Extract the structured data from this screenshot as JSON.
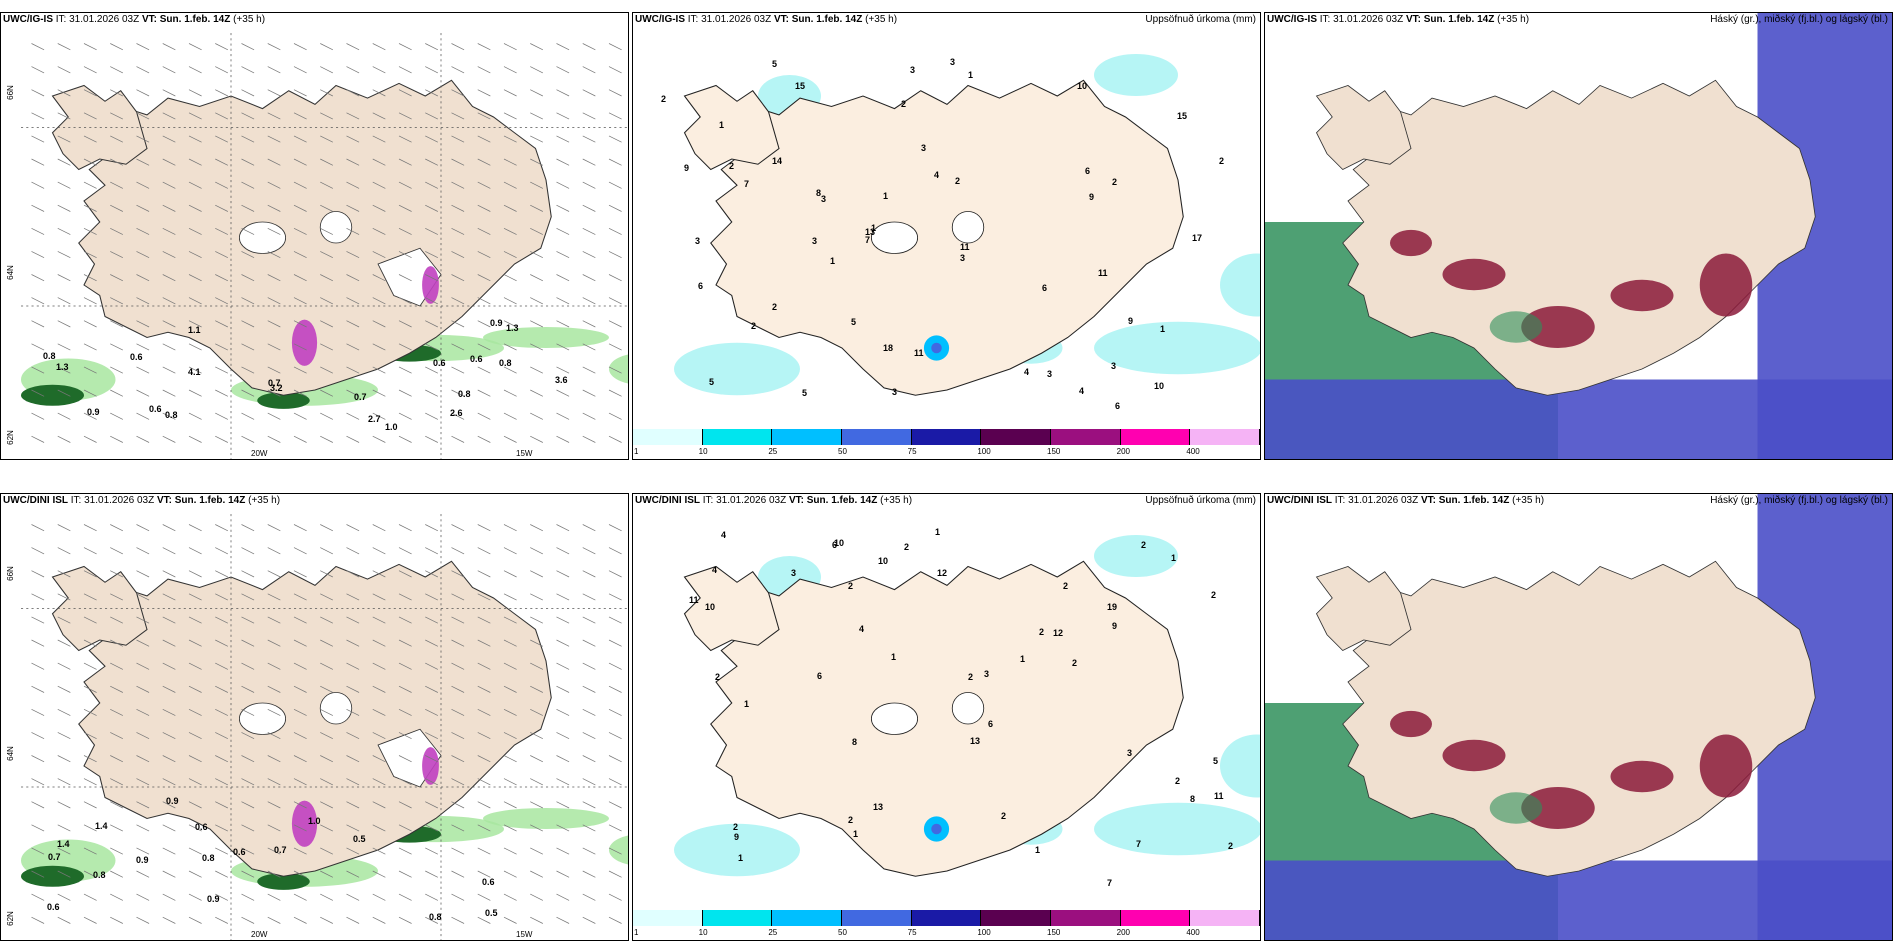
{
  "panels": [
    {
      "row": 0,
      "col": 0,
      "model": "UWC/IG-IS",
      "it": "31.01.2026 03Z",
      "vt": "Sun. 1.feb. 14Z",
      "lead": "(+35 h)",
      "field": "",
      "labels": [
        "1.0",
        "1.1",
        "0.6",
        "0.6",
        "0.6",
        "2.7",
        "3.6",
        "4.1",
        "3.2",
        "0.8",
        "0.9",
        "0.8",
        "0.7",
        "0.7",
        "0.6",
        "0.9",
        "1.3",
        "1.3",
        "0.8",
        "0.8",
        "2.6"
      ]
    },
    {
      "row": 0,
      "col": 1,
      "model": "UWC/IG-IS",
      "it": "31.01.2026 03Z",
      "vt": "Sun. 1.feb. 14Z",
      "lead": "(+35 h)",
      "field": "Uppsöfnuð úrkoma (mm)",
      "labels": [
        "2",
        "4",
        "3",
        "3",
        "15",
        "5",
        "3",
        "1",
        "2",
        "2",
        "2",
        "10",
        "10",
        "6",
        "3",
        "1",
        "3",
        "4",
        "3",
        "2",
        "1",
        "1",
        "2",
        "4",
        "5",
        "3",
        "3",
        "2",
        "9",
        "8",
        "6",
        "3",
        "1",
        "9",
        "5",
        "2",
        "6",
        "3",
        "13",
        "14",
        "11",
        "17",
        "11",
        "7",
        "9",
        "5",
        "6",
        "7",
        "11",
        "1",
        "15",
        "18"
      ]
    },
    {
      "row": 0,
      "col": 2,
      "model": "UWC/IG-IS",
      "it": "31.01.2026 03Z",
      "vt": "Sun. 1.feb. 14Z",
      "lead": "(+35 h)",
      "field": "Háský (gr.), miðský (fj.bl.) og lágský (bl.)",
      "labels": []
    },
    {
      "row": 1,
      "col": 0,
      "model": "UWC/DINI ISL",
      "it": "31.01.2026 03Z",
      "vt": "Sun. 1.feb. 14Z",
      "lead": "(+35 h)",
      "field": "",
      "labels": [
        "0.9",
        "0.8",
        "1.4",
        "0.5",
        "0.8",
        "0.6",
        "0.9",
        "0.5",
        "0.8",
        "0.7",
        "0.6",
        "1.0",
        "0.6",
        "0.6",
        "1.4",
        "0.7",
        "0.9"
      ]
    },
    {
      "row": 1,
      "col": 1,
      "model": "UWC/DINI ISL",
      "it": "31.01.2026 03Z",
      "vt": "Sun. 1.feb. 14Z",
      "lead": "(+35 h)",
      "field": "Uppsöfnuð úrkoma (mm)",
      "labels": [
        "2",
        "2",
        "2",
        "2",
        "3",
        "5",
        "9",
        "12",
        "12",
        "10",
        "4",
        "2",
        "2",
        "2",
        "2",
        "2",
        "1",
        "2",
        "3",
        "2",
        "1",
        "1",
        "1",
        "1",
        "2",
        "2",
        "4",
        "3",
        "1",
        "1",
        "2",
        "6",
        "8",
        "9",
        "1",
        "7",
        "6",
        "8",
        "13",
        "19",
        "10",
        "11",
        "10",
        "11",
        "13",
        "7",
        "6",
        "4"
      ]
    },
    {
      "row": 1,
      "col": 2,
      "model": "UWC/DINI ISL",
      "it": "31.01.2026 03Z",
      "vt": "Sun. 1.feb. 14Z",
      "lead": "(+35 h)",
      "field": "Háský (gr.), miðský (fj.bl.) og lágský (bl.)",
      "labels": []
    }
  ],
  "axis_labels": {
    "lat_top": "66N",
    "lat_mid": "64N",
    "lat_bot": "62N",
    "lon_left": "20W",
    "lon_right": "15W"
  },
  "colorbar": {
    "ticks": [
      "1",
      "10",
      "25",
      "50",
      "75",
      "100",
      "150",
      "200",
      "400"
    ],
    "colors": [
      "#e0ffff",
      "#00e5ee",
      "#00bfff",
      "#4169e1",
      "#1a1aa6",
      "#5a0050",
      "#9b0f7f",
      "#ff00b0",
      "#f5b3f5"
    ]
  },
  "colors": {
    "land": "#f0e0d0",
    "land_warm": "#fbeee0",
    "precip_light": "#b6f5f5",
    "green_shade": "#a8e6a0",
    "green_dark": "#1f6b2a",
    "magenta": "#c040c0",
    "hi_cloud": "#2f8f5a",
    "mid_cloud": "#8b1a3a",
    "lo_cloud": "#4a4fc8"
  }
}
